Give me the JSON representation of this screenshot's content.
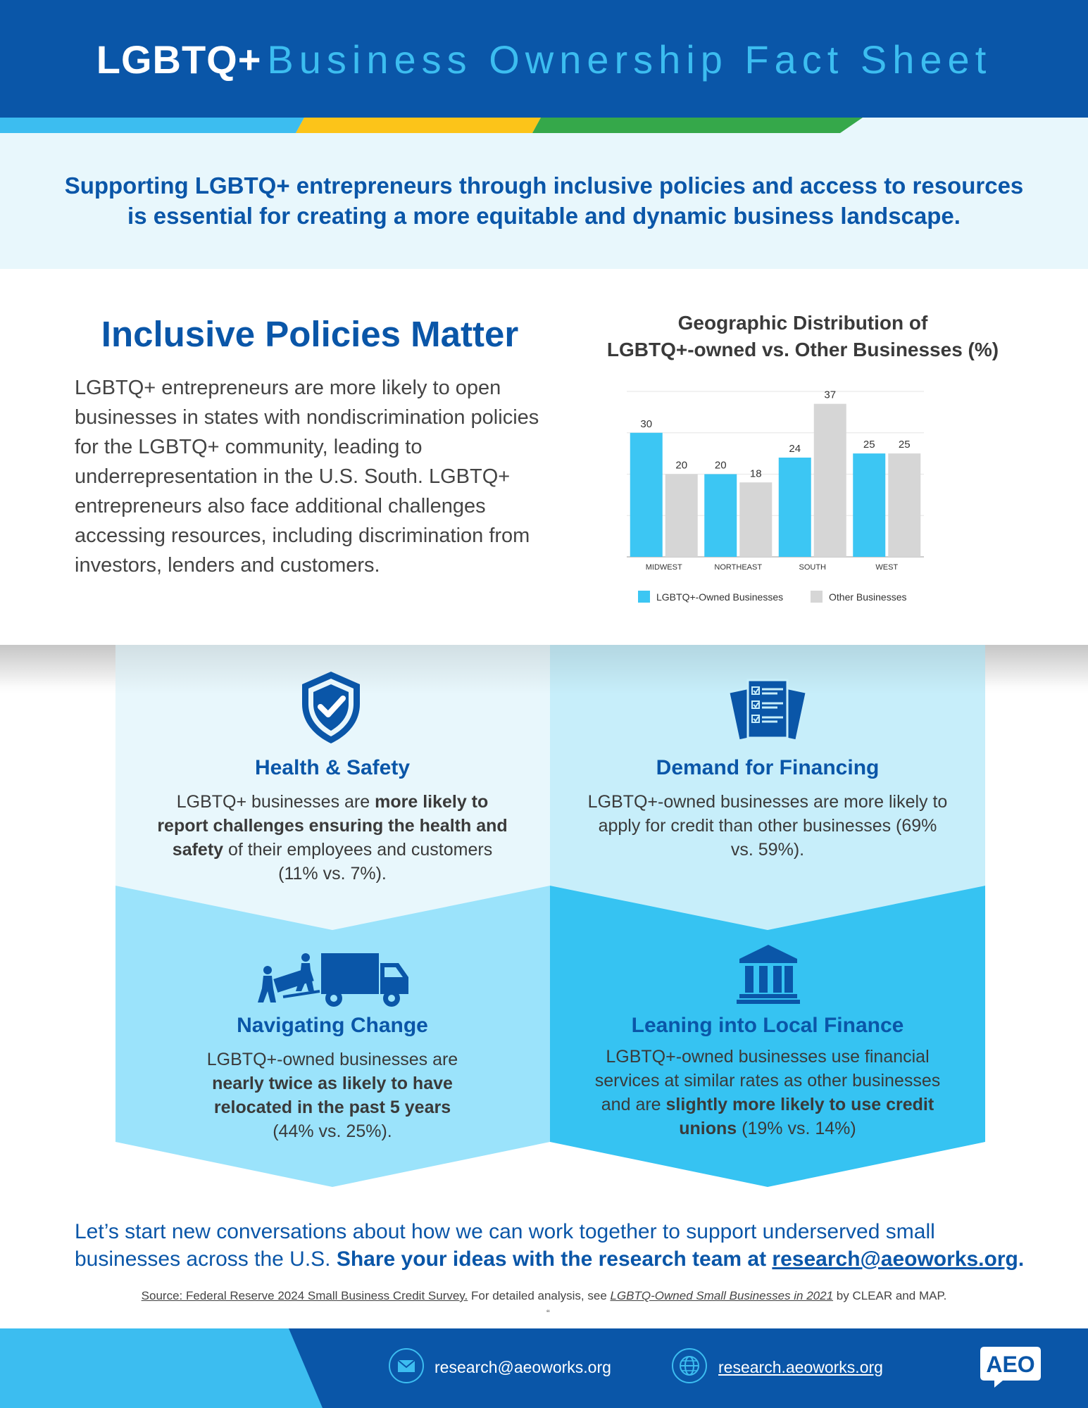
{
  "header": {
    "title_bold": "LGBTQ+",
    "title_light": "Business Ownership Fact Sheet"
  },
  "colors": {
    "navy": "#0a56a8",
    "sky": "#3cbdf0",
    "yellow": "#fcc419",
    "green": "#35a84a",
    "pale": "#e8f7fc",
    "light_tile": "#c7eefa",
    "mid_tile": "#9be3fb",
    "bright_tile": "#36c3f2",
    "gray_bar": "#d6d6d6"
  },
  "intro": {
    "text": "Supporting LGBTQ+ entrepreneurs through inclusive policies and access to resources is essential for creating a more equitable and dynamic business landscape."
  },
  "policy": {
    "heading": "Inclusive Policies Matter",
    "body": "LGBTQ+ entrepreneurs are more likely to open businesses in states with nondiscrimination policies for the LGBTQ+ community, leading to underrepresentation in the U.S. South. LGBTQ+ entrepreneurs also face additional challenges accessing resources, including discrimination from investors, lenders and customers."
  },
  "chart_data": {
    "type": "bar",
    "title": "Geographic Distribution of LGBTQ+-owned vs. Other Businesses (%)",
    "title_line1": "Geographic Distribution of",
    "title_line2": "LGBTQ+-owned vs. Other Businesses (%)",
    "categories": [
      "MIDWEST",
      "NORTHEAST",
      "SOUTH",
      "WEST"
    ],
    "series": [
      {
        "name": "LGBTQ+-Owned Businesses",
        "color": "#3cc6f3",
        "values": [
          30,
          20,
          24,
          25
        ]
      },
      {
        "name": "Other Businesses",
        "color": "#d6d6d6",
        "values": [
          20,
          18,
          37,
          25
        ]
      }
    ],
    "ylim": [
      0,
      40
    ],
    "grid": true,
    "legend": "bottom"
  },
  "tiles": {
    "health": {
      "icon": "shield-check-icon",
      "title": "Health & Safety",
      "body_pre": "LGBTQ+ businesses are ",
      "body_bold": "more likely to report challenges ensuring the health and safety",
      "body_post": " of their employees and customers (11% vs. 7%)."
    },
    "financing": {
      "icon": "documents-checklist-icon",
      "title": "Demand for Financing",
      "body": "LGBTQ+-owned businesses are more likely to apply for credit than other businesses (69% vs. 59%)."
    },
    "change": {
      "icon": "moving-truck-icon",
      "title": "Navigating Change",
      "body_pre": "LGBTQ+-owned businesses are ",
      "body_bold": "nearly twice as likely to have relocated in the past 5 years",
      "body_post": " (44% vs. 25%)."
    },
    "local": {
      "icon": "bank-building-icon",
      "title": "Leaning into Local Finance",
      "body_pre": "LGBTQ+-owned businesses use financial services at similar rates as other businesses and are ",
      "body_bold": "slightly more likely to use credit unions",
      "body_post": " (19% vs. 14%)"
    }
  },
  "cta": {
    "text": "Let’s start new conversations about how we can work together to support underserved small businesses across the U.S. ",
    "bold": "Share your ideas with the research team at ",
    "email": "research@aeoworks.org",
    "end": "."
  },
  "source": {
    "link1": "Source: Federal Reserve 2024 Small Business Credit Survey.",
    "mid": " For detailed analysis, see ",
    "link2": "LGBTQ-Owned Small Businesses in 2021",
    "end": " by CLEAR and MAP.",
    "mark": "“"
  },
  "footer": {
    "email": "research@aeoworks.org",
    "website": "research.aeoworks.org",
    "email_icon": "envelope-icon",
    "web_icon": "globe-icon",
    "logo": "AEO"
  }
}
